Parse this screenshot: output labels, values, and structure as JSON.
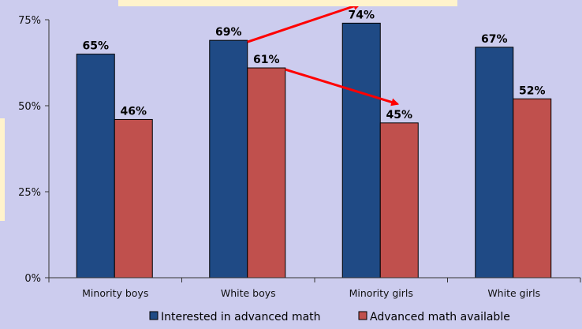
{
  "chart_data": {
    "type": "bar",
    "categories": [
      "Minority boys",
      "White boys",
      "Minority girls",
      "White girls"
    ],
    "series": [
      {
        "name": "Interested in advanced math",
        "values": [
          65,
          69,
          74,
          67
        ],
        "labels": [
          "65%",
          "69%",
          "74%",
          "67%"
        ],
        "color": "#1f4a85"
      },
      {
        "name": "Advanced math available",
        "values": [
          46,
          61,
          45,
          52
        ],
        "labels": [
          "46%",
          "61%",
          "45%",
          "52%"
        ],
        "color": "#c0504d"
      }
    ],
    "y_ticks": [
      {
        "value": 0,
        "label": "0%"
      },
      {
        "value": 25,
        "label": "25%"
      },
      {
        "value": 50,
        "label": "50%"
      },
      {
        "value": 75,
        "label": "75%"
      }
    ],
    "ylim": [
      0,
      75
    ],
    "grid": false,
    "legend_position": "bottom",
    "annotations": [
      {
        "type": "arrow",
        "from": {
          "category": "White boys",
          "series": 0
        },
        "to": {
          "category": "Minority girls",
          "series": 0
        },
        "color": "#ff0000"
      },
      {
        "type": "arrow",
        "from": {
          "category": "White boys",
          "series": 1
        },
        "to": {
          "category": "Minority girls",
          "series": 1
        },
        "color": "#ff0000"
      }
    ]
  },
  "colors": {
    "background": "#ccccee",
    "decoration": "#fff3cc",
    "axis": "#333333",
    "arrow": "#ff0000"
  }
}
